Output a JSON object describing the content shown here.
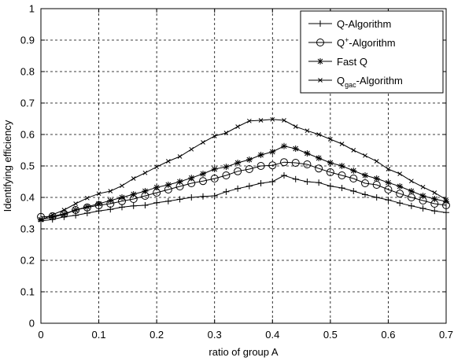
{
  "chart_data": {
    "type": "line",
    "title": "",
    "xlabel": "ratio of group A",
    "ylabel": "Identifying efficiency",
    "xlim": [
      0,
      0.7
    ],
    "ylim": [
      0,
      1
    ],
    "grid": true,
    "grid_style": "dashed",
    "legend_placement": "top-right",
    "x_ticks": [
      "0",
      "0.1",
      "0.2",
      "0.3",
      "0.4",
      "0.5",
      "0.6",
      "0.7"
    ],
    "y_ticks": [
      "0",
      "0.1",
      "0.2",
      "0.3",
      "0.4",
      "0.5",
      "0.6",
      "0.7",
      "0.8",
      "0.9",
      "1"
    ],
    "x": [
      0,
      0.02,
      0.04,
      0.06,
      0.08,
      0.1,
      0.12,
      0.14,
      0.16,
      0.18,
      0.2,
      0.22,
      0.24,
      0.26,
      0.28,
      0.3,
      0.32,
      0.34,
      0.36,
      0.38,
      0.4,
      0.42,
      0.44,
      0.46,
      0.48,
      0.5,
      0.52,
      0.54,
      0.56,
      0.58,
      0.6,
      0.62,
      0.64,
      0.66,
      0.68,
      0.7
    ],
    "series": [
      {
        "name": "Q-Algorithm",
        "marker": "plus",
        "values": [
          0.325,
          0.33,
          0.338,
          0.343,
          0.35,
          0.357,
          0.362,
          0.369,
          0.373,
          0.375,
          0.383,
          0.388,
          0.394,
          0.4,
          0.403,
          0.405,
          0.418,
          0.428,
          0.436,
          0.445,
          0.45,
          0.47,
          0.458,
          0.45,
          0.447,
          0.436,
          0.43,
          0.42,
          0.409,
          0.4,
          0.392,
          0.382,
          0.373,
          0.365,
          0.357,
          0.352
        ]
      },
      {
        "name": "Q+-Algorithm",
        "marker": "circle",
        "values": [
          0.338,
          0.34,
          0.348,
          0.36,
          0.368,
          0.375,
          0.38,
          0.388,
          0.395,
          0.405,
          0.415,
          0.425,
          0.435,
          0.445,
          0.452,
          0.46,
          0.47,
          0.483,
          0.49,
          0.5,
          0.502,
          0.512,
          0.51,
          0.505,
          0.492,
          0.48,
          0.47,
          0.46,
          0.445,
          0.44,
          0.425,
          0.412,
          0.4,
          0.39,
          0.38,
          0.375
        ]
      },
      {
        "name": "Fast Q",
        "marker": "star",
        "values": [
          0.33,
          0.337,
          0.346,
          0.36,
          0.37,
          0.38,
          0.39,
          0.4,
          0.41,
          0.42,
          0.432,
          0.44,
          0.45,
          0.462,
          0.475,
          0.49,
          0.497,
          0.51,
          0.52,
          0.535,
          0.545,
          0.563,
          0.555,
          0.54,
          0.525,
          0.51,
          0.5,
          0.485,
          0.47,
          0.46,
          0.447,
          0.435,
          0.42,
          0.405,
          0.395,
          0.387
        ]
      },
      {
        "name": "Qgac-Algorithm",
        "marker": "x",
        "values": [
          0.328,
          0.345,
          0.36,
          0.38,
          0.398,
          0.412,
          0.42,
          0.437,
          0.46,
          0.478,
          0.497,
          0.515,
          0.53,
          0.553,
          0.575,
          0.595,
          0.605,
          0.625,
          0.643,
          0.645,
          0.648,
          0.645,
          0.625,
          0.612,
          0.6,
          0.585,
          0.57,
          0.55,
          0.533,
          0.515,
          0.49,
          0.475,
          0.452,
          0.433,
          0.415,
          0.393
        ]
      }
    ],
    "legend_labels": [
      {
        "base": "Q-Algorithm",
        "prefix": "",
        "mark": "",
        "suffix": ""
      },
      {
        "base": "",
        "prefix": "Q",
        "mark": "+",
        "mark_type": "sup",
        "suffix": "-Algorithm"
      },
      {
        "base": "Fast Q",
        "prefix": "",
        "mark": "",
        "suffix": ""
      },
      {
        "base": "",
        "prefix": "Q",
        "mark": "gac",
        "mark_type": "sub",
        "suffix": "-Algorithm"
      }
    ]
  }
}
